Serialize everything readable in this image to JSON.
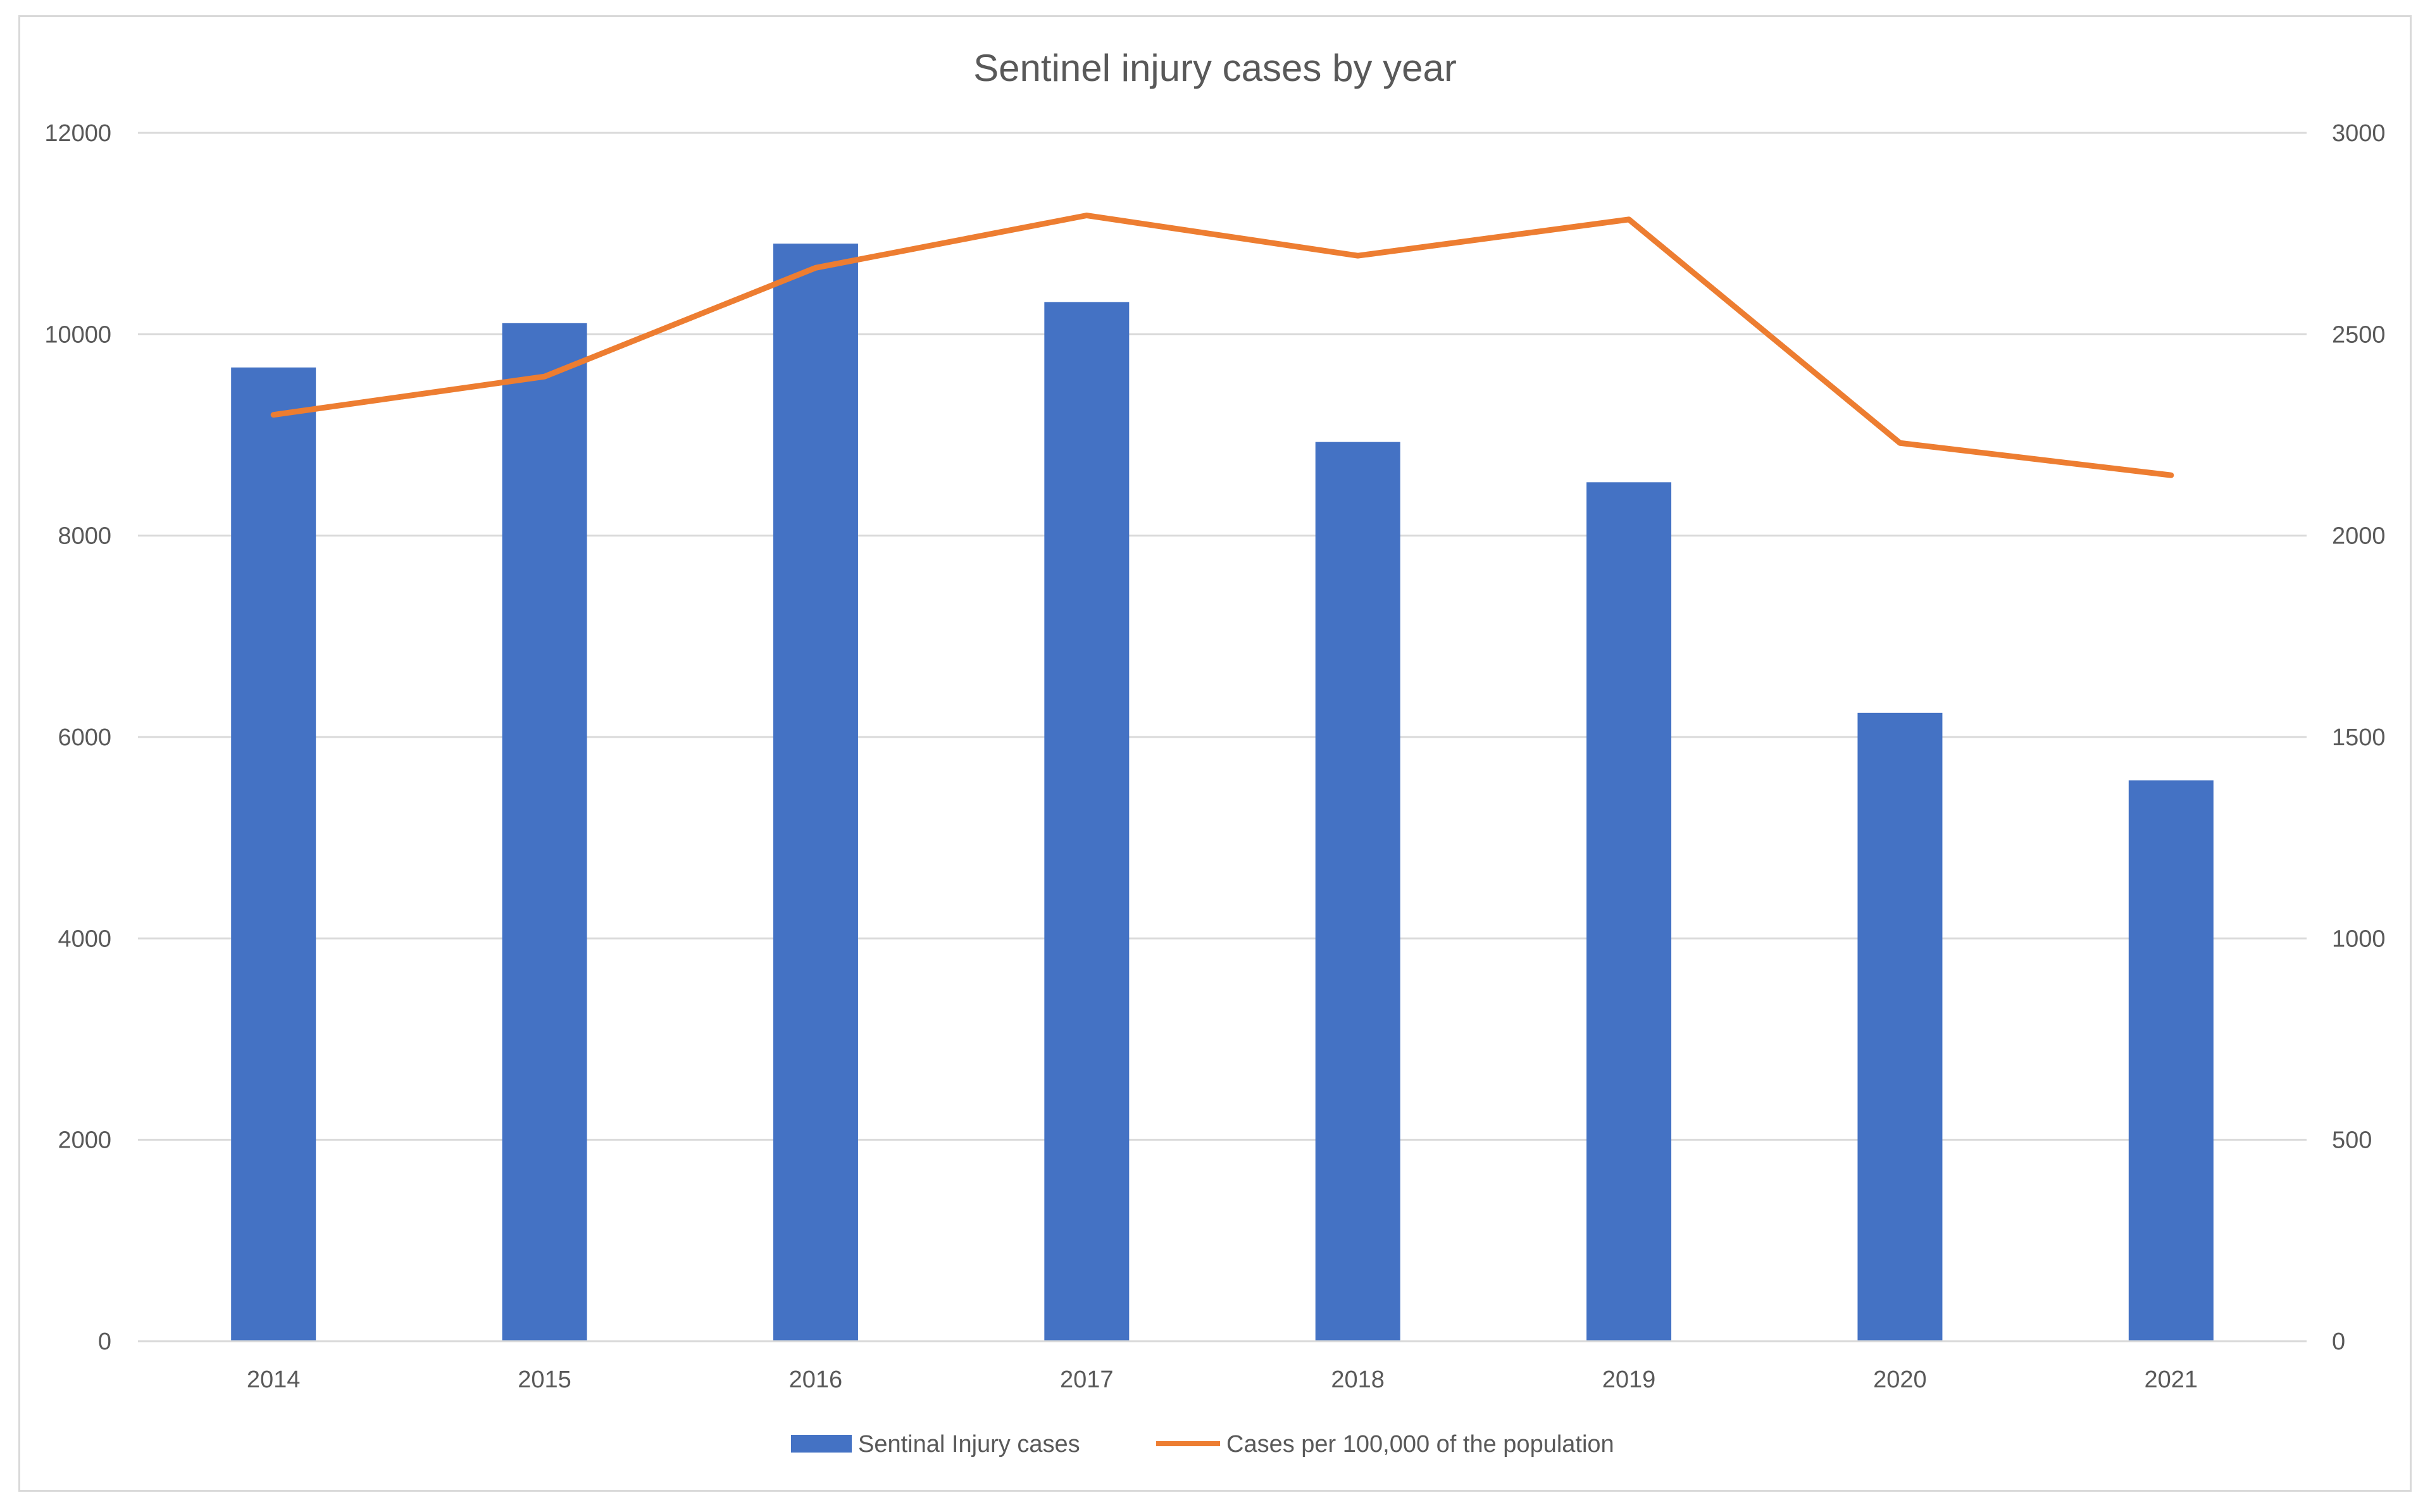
{
  "chart_data": {
    "type": "bar+line",
    "title": "Sentinel injury cases by year",
    "categories": [
      "2014",
      "2015",
      "2016",
      "2017",
      "2018",
      "2019",
      "2020",
      "2021"
    ],
    "series": [
      {
        "name": "Sentinal Injury cases",
        "type": "bar",
        "axis": "left",
        "color": "#4472c4",
        "values": [
          9670,
          10110,
          10900,
          10320,
          8930,
          8530,
          6240,
          5570
        ]
      },
      {
        "name": "Cases per 100,000 of the population",
        "type": "line",
        "axis": "right",
        "color": "#ed7d31",
        "values": [
          2300,
          2395,
          2665,
          2795,
          2695,
          2785,
          2230,
          2150
        ]
      }
    ],
    "y_left": {
      "ylim": [
        0,
        12000
      ],
      "ticks": [
        "0",
        "2000",
        "4000",
        "6000",
        "8000",
        "10000",
        "12000"
      ]
    },
    "y_right": {
      "ylim": [
        0,
        3000
      ],
      "ticks": [
        "0",
        "500",
        "1000",
        "1500",
        "2000",
        "2500",
        "3000"
      ]
    },
    "grid": true,
    "legend": "bottom-center",
    "gridline_color": "#d9d9d9",
    "text_color": "#595959"
  }
}
